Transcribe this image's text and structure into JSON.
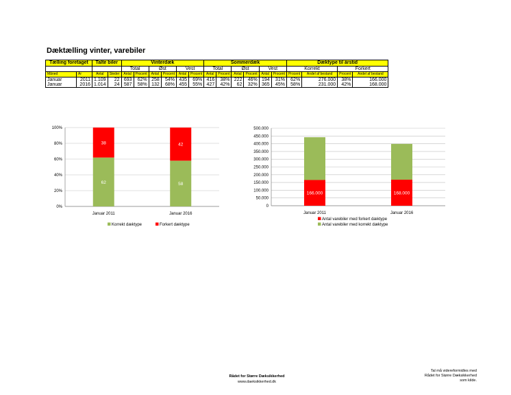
{
  "title": "Dæktælling vinter, varebiler",
  "table": {
    "groups": [
      "Tælling foretaget",
      "Talte biler",
      "Vinterdæk",
      "Sommerdæk",
      "Dæktype til årstid"
    ],
    "subgroups": {
      "vinter": [
        "Total",
        "Øst",
        "Vest"
      ],
      "sommer": [
        "Total",
        "Øst",
        "Vest"
      ],
      "aarstid": [
        "Korrekt",
        "Forkert"
      ]
    },
    "headers": [
      "Måned",
      "År",
      "Antal",
      "Steder",
      "Antal",
      "Procent",
      "Antal",
      "Procent",
      "Antal",
      "Procent",
      "Antal",
      "Procent",
      "Antal",
      "Procent",
      "Antal",
      "Procent",
      "Procent",
      "Andel af bestand",
      "Procent",
      "Andel af bestand"
    ],
    "rows": [
      [
        "Januar",
        "2011",
        "1.109",
        "22",
        "693",
        "62%",
        "258",
        "54%",
        "435",
        "69%",
        "416",
        "38%",
        "222",
        "46%",
        "194",
        "31%",
        "62%",
        "276.000",
        "38%",
        "166.000"
      ],
      [
        "Januar",
        "2016",
        "1.014",
        "24",
        "587",
        "58%",
        "132",
        "68%",
        "455",
        "55%",
        "427",
        "42%",
        "62",
        "32%",
        "365",
        "45%",
        "58%",
        "231.000",
        "42%",
        "168.000"
      ]
    ]
  },
  "chart_data": [
    {
      "type": "bar",
      "stacked": "percent",
      "categories": [
        "Januar 2011",
        "Januar 2016"
      ],
      "series": [
        {
          "name": "Korrekt dæktype",
          "values": [
            62,
            58
          ],
          "color": "#9bbb59"
        },
        {
          "name": "Forkert dæktype",
          "values": [
            38,
            42
          ],
          "color": "#ff0000"
        }
      ],
      "data_labels": [
        [
          "62",
          "58"
        ],
        [
          "38",
          "42"
        ]
      ],
      "ylim": [
        0,
        100
      ],
      "yticks": [
        "0%",
        "20%",
        "40%",
        "60%",
        "80%",
        "100%"
      ],
      "ytick_values": [
        0,
        20,
        40,
        60,
        80,
        100
      ],
      "grid": true,
      "legend": "bottom"
    },
    {
      "type": "bar",
      "stacked": "absolute",
      "categories": [
        "Januar 2011",
        "Januar 2016"
      ],
      "series": [
        {
          "name": "Antal varebiler med forkert dæktype",
          "values": [
            166000,
            168000
          ],
          "color": "#ff0000"
        },
        {
          "name": "Antal varebiler med korrekt dæktype",
          "values": [
            276000,
            231000
          ],
          "color": "#9bbb59"
        }
      ],
      "data_labels": [
        [
          "166.000",
          "168.000"
        ],
        null
      ],
      "ylim": [
        0,
        500000
      ],
      "yticks": [
        "0",
        "50.000",
        "100.000",
        "150.000",
        "200.000",
        "250.000",
        "300.000",
        "350.000",
        "400.000",
        "450.000",
        "500.000"
      ],
      "ytick_values": [
        0,
        50000,
        100000,
        150000,
        200000,
        250000,
        300000,
        350000,
        400000,
        450000,
        500000
      ],
      "grid": true,
      "legend": "bottom"
    }
  ],
  "footer": {
    "org": "Rådet for Større Dæksikkerhed",
    "url": "www.daeksikkerhed.dk",
    "note": [
      "Tal må videreformidles med",
      "Rådet for Større Dæksikkerhed",
      "som kilde."
    ]
  }
}
